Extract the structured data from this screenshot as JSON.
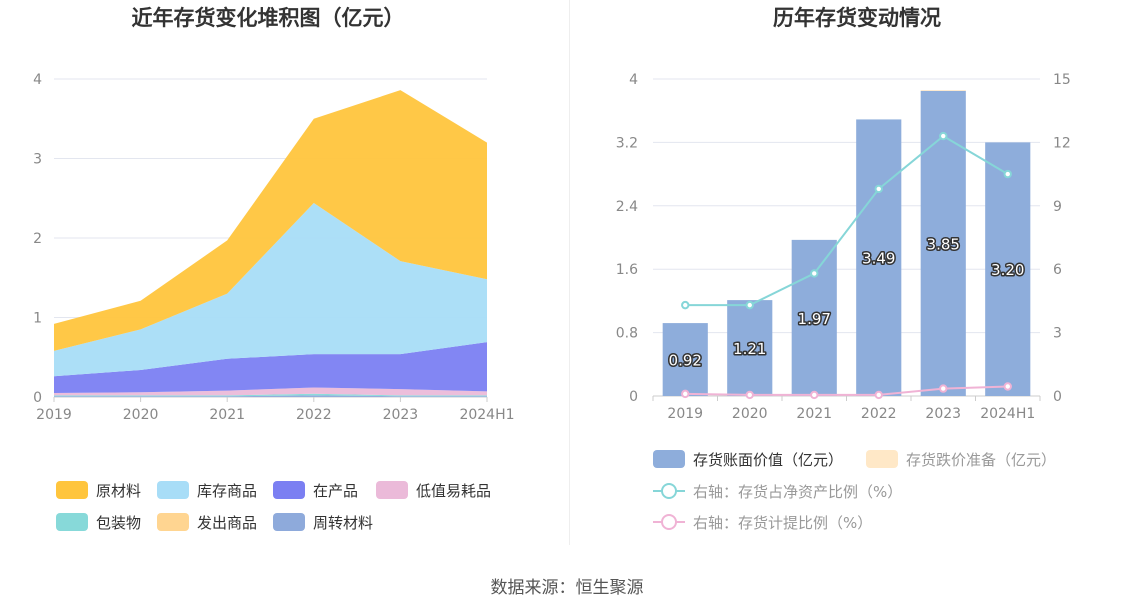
{
  "source_text": "数据来源：恒生聚源",
  "chart_data": [
    {
      "type": "area",
      "stacked": true,
      "title": "近年存货变化堆积图（亿元）",
      "categories": [
        "2019",
        "2020",
        "2021",
        "2022",
        "2023",
        "2024H1"
      ],
      "ylim": [
        0,
        4
      ],
      "yticks": [
        0,
        1,
        2,
        3,
        4
      ],
      "grid": true,
      "legend_position": "bottom",
      "series": [
        {
          "name": "周转材料",
          "color": "#8eaadb",
          "values": [
            0.01,
            0.01,
            0.01,
            0.02,
            0.01,
            0.01
          ]
        },
        {
          "name": "发出商品",
          "color": "#ffd591",
          "values": [
            0.0,
            0.0,
            0.0,
            0.0,
            0.0,
            0.0
          ]
        },
        {
          "name": "包装物",
          "color": "#87d9d9",
          "values": [
            0.01,
            0.01,
            0.01,
            0.02,
            0.01,
            0.01
          ]
        },
        {
          "name": "低值易耗品",
          "color": "#ebbad9",
          "values": [
            0.03,
            0.04,
            0.06,
            0.08,
            0.08,
            0.05
          ]
        },
        {
          "name": "在产品",
          "color": "#7b7ff2",
          "values": [
            0.21,
            0.28,
            0.4,
            0.42,
            0.44,
            0.62
          ]
        },
        {
          "name": "库存商品",
          "color": "#a8ddf7",
          "values": [
            0.32,
            0.51,
            0.82,
            1.9,
            1.17,
            0.79
          ]
        },
        {
          "name": "原材料",
          "color": "#ffc53d",
          "values": [
            0.34,
            0.36,
            0.67,
            1.06,
            2.15,
            1.72
          ]
        }
      ],
      "legend_order": [
        "原材料",
        "库存商品",
        "在产品",
        "低值易耗品",
        "包装物",
        "发出商品",
        "周转材料"
      ]
    },
    {
      "type": "bar",
      "title": "历年存货变动情况",
      "categories": [
        "2019",
        "2020",
        "2021",
        "2022",
        "2023",
        "2024H1"
      ],
      "ylim": [
        0,
        4
      ],
      "yticks": [
        "0",
        "0.8",
        "1.6",
        "2.4",
        "3.2",
        "4"
      ],
      "y2lim": [
        0,
        15
      ],
      "y2ticks": [
        "0",
        "3",
        "6",
        "9",
        "12",
        "15"
      ],
      "grid": true,
      "legend_position": "bottom",
      "bar_series": [
        {
          "name": "存货账面价值（亿元）",
          "color": "#8eaddb",
          "values": [
            0.92,
            1.21,
            1.97,
            3.49,
            3.85,
            3.2
          ],
          "labels": [
            "0.92",
            "1.21",
            "1.97",
            "3.49",
            "3.85",
            "3.20"
          ]
        },
        {
          "name": "存货跌价准备（亿元）",
          "color": "#ffe8c7",
          "values": [
            0.0,
            0.0,
            0.0,
            0.0,
            0.01,
            0.0
          ]
        }
      ],
      "line_series": [
        {
          "name": "右轴：存货占净资产比例（%）",
          "color": "#86d6d8",
          "values": [
            4.3,
            4.3,
            5.8,
            9.8,
            12.3,
            10.5
          ]
        },
        {
          "name": "右轴：存货计提比例（%）",
          "color": "#f0b3d5",
          "values": [
            0.1,
            0.05,
            0.05,
            0.05,
            0.35,
            0.45
          ]
        }
      ]
    }
  ]
}
